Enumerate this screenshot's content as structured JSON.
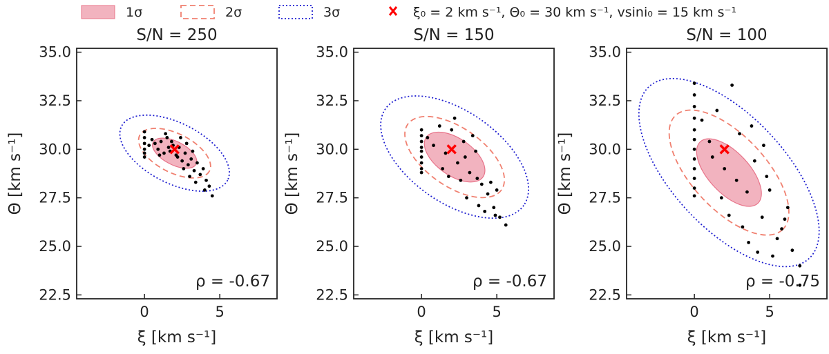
{
  "legend": {
    "items": [
      {
        "label": "1σ",
        "style": "fill",
        "color": "#e8748a"
      },
      {
        "label": "2σ",
        "style": "dashed",
        "color": "#f08070"
      },
      {
        "label": "3σ",
        "style": "dotted",
        "color": "#1f1fd0"
      },
      {
        "label": "ξ₀ = 2 km s⁻¹, Θ₀ = 30 km s⁻¹, vsini₀ = 15 km s⁻¹",
        "style": "marker",
        "color": "#ff0000"
      }
    ]
  },
  "chart_data": [
    {
      "type": "scatter",
      "title": "S/N = 250",
      "xlabel": "ξ [km s⁻¹]",
      "ylabel": "Θ [km s⁻¹]",
      "xlim": [
        -4.5,
        8.8
      ],
      "ylim": [
        22.3,
        35.2
      ],
      "xticks": [
        "0",
        "5"
      ],
      "yticks": [
        "22.5",
        "25.0",
        "27.5",
        "30.0",
        "32.5",
        "35.0"
      ],
      "truth": {
        "x": 2,
        "y": 30
      },
      "annotation": "ρ = -0.67",
      "ellipses": {
        "center": [
          2.0,
          29.8
        ],
        "sigma1": [
          1.6,
          0.6
        ],
        "sigma2": [
          2.6,
          1.0
        ],
        "sigma3": [
          3.95,
          1.55
        ],
        "angle_deg": -27
      },
      "points": [
        [
          0,
          30.9
        ],
        [
          0,
          30.6
        ],
        [
          0,
          30.3
        ],
        [
          0,
          30.0
        ],
        [
          0,
          29.8
        ],
        [
          0,
          29.6
        ],
        [
          0.3,
          30.2
        ],
        [
          0.5,
          30.5
        ],
        [
          0.7,
          30.3
        ],
        [
          0.9,
          30.0
        ],
        [
          1.1,
          30.4
        ],
        [
          1.3,
          29.8
        ],
        [
          1.5,
          30.6
        ],
        [
          1.7,
          29.9
        ],
        [
          1.9,
          30.2
        ],
        [
          2.1,
          29.7
        ],
        [
          2.3,
          30.1
        ],
        [
          2.5,
          29.4
        ],
        [
          2.7,
          29.8
        ],
        [
          2.9,
          29.2
        ],
        [
          3.1,
          29.5
        ],
        [
          3.3,
          28.9
        ],
        [
          3.5,
          29.3
        ],
        [
          3.7,
          28.7
        ],
        [
          3.9,
          29.0
        ],
        [
          4.1,
          28.4
        ],
        [
          4.3,
          28.1
        ],
        [
          4.5,
          27.6
        ],
        [
          3.0,
          28.6
        ],
        [
          2.6,
          29.0
        ],
        [
          2.2,
          29.6
        ],
        [
          1.8,
          30.4
        ],
        [
          1.4,
          30.8
        ],
        [
          1.0,
          29.7
        ],
        [
          2.8,
          30.3
        ],
        [
          3.4,
          28.3
        ],
        [
          4.0,
          27.9
        ],
        [
          2.4,
          30.6
        ],
        [
          1.6,
          30.1
        ],
        [
          3.2,
          29.9
        ]
      ]
    },
    {
      "type": "scatter",
      "title": "S/N = 150",
      "xlabel": "ξ [km s⁻¹]",
      "ylabel": "Θ [km s⁻¹]",
      "xlim": [
        -4.5,
        8.8
      ],
      "ylim": [
        22.3,
        35.2
      ],
      "xticks": [
        "0",
        "5"
      ],
      "yticks": [
        "22.5",
        "25.0",
        "27.5",
        "30.0",
        "32.5",
        "35.0"
      ],
      "truth": {
        "x": 2,
        "y": 30
      },
      "annotation": "ρ = -0.67",
      "ellipses": {
        "center": [
          2.2,
          29.6
        ],
        "sigma1": [
          2.3,
          0.95
        ],
        "sigma2": [
          3.8,
          1.5
        ],
        "sigma3": [
          5.6,
          2.35
        ],
        "angle_deg": -35
      },
      "points": [
        [
          0,
          31.0
        ],
        [
          0,
          30.7
        ],
        [
          0,
          30.4
        ],
        [
          0,
          30.1
        ],
        [
          0,
          29.9
        ],
        [
          0,
          29.6
        ],
        [
          0,
          29.3
        ],
        [
          0,
          29.0
        ],
        [
          0,
          28.8
        ],
        [
          0.4,
          30.6
        ],
        [
          0.8,
          30.2
        ],
        [
          1.2,
          31.2
        ],
        [
          1.6,
          29.8
        ],
        [
          2.0,
          31.0
        ],
        [
          2.4,
          29.3
        ],
        [
          2.8,
          30.4
        ],
        [
          3.2,
          28.8
        ],
        [
          3.6,
          29.9
        ],
        [
          4.0,
          28.2
        ],
        [
          4.4,
          27.7
        ],
        [
          4.8,
          27.0
        ],
        [
          5.2,
          26.5
        ],
        [
          5.6,
          26.1
        ],
        [
          3.0,
          27.5
        ],
        [
          2.6,
          28.4
        ],
        [
          3.8,
          27.1
        ],
        [
          4.6,
          28.3
        ],
        [
          1.4,
          29.0
        ],
        [
          2.2,
          31.6
        ],
        [
          3.4,
          30.7
        ],
        [
          4.2,
          26.8
        ],
        [
          5.0,
          27.9
        ],
        [
          1.8,
          28.6
        ],
        [
          2.9,
          29.6
        ],
        [
          3.7,
          28.5
        ],
        [
          4.9,
          26.6
        ]
      ]
    },
    {
      "type": "scatter",
      "title": "S/N = 100",
      "xlabel": "ξ [km s⁻¹]",
      "ylabel": "Θ [km s⁻¹]",
      "xlim": [
        -4.5,
        8.8
      ],
      "ylim": [
        22.3,
        35.2
      ],
      "xticks": [
        "0",
        "5"
      ],
      "yticks": [
        "22.5",
        "25.0",
        "27.5",
        "30.0",
        "32.5",
        "35.0"
      ],
      "truth": {
        "x": 2,
        "y": 30
      },
      "annotation": "ρ = -0.75",
      "ellipses": {
        "center": [
          2.3,
          28.8
        ],
        "sigma1": [
          2.8,
          1.05
        ],
        "sigma2": [
          5.2,
          1.9
        ],
        "sigma3": [
          7.8,
          2.9
        ],
        "angle_deg": -47
      },
      "points": [
        [
          0,
          33.4
        ],
        [
          0,
          32.8
        ],
        [
          0,
          32.2
        ],
        [
          0,
          31.6
        ],
        [
          0,
          31.0
        ],
        [
          0,
          30.5
        ],
        [
          0,
          30.0
        ],
        [
          0,
          29.5
        ],
        [
          0,
          29.0
        ],
        [
          0,
          28.5
        ],
        [
          0,
          28.0
        ],
        [
          0,
          27.6
        ],
        [
          0.5,
          31.5
        ],
        [
          1.0,
          30.4
        ],
        [
          1.5,
          32.0
        ],
        [
          2.0,
          29.0
        ],
        [
          2.5,
          33.3
        ],
        [
          3.0,
          30.8
        ],
        [
          3.5,
          27.8
        ],
        [
          4.0,
          29.4
        ],
        [
          4.5,
          26.5
        ],
        [
          5.0,
          27.9
        ],
        [
          5.5,
          25.4
        ],
        [
          6.0,
          26.4
        ],
        [
          6.5,
          24.8
        ],
        [
          7.0,
          24.0
        ],
        [
          7.0,
          23.0
        ],
        [
          3.2,
          26.0
        ],
        [
          4.2,
          24.7
        ],
        [
          5.2,
          24.5
        ],
        [
          2.8,
          28.4
        ],
        [
          1.8,
          27.5
        ],
        [
          3.8,
          31.2
        ],
        [
          4.8,
          28.6
        ],
        [
          6.2,
          27.0
        ],
        [
          1.2,
          29.6
        ],
        [
          2.3,
          26.6
        ],
        [
          5.8,
          25.9
        ],
        [
          3.6,
          25.2
        ],
        [
          4.6,
          30.2
        ]
      ]
    }
  ]
}
